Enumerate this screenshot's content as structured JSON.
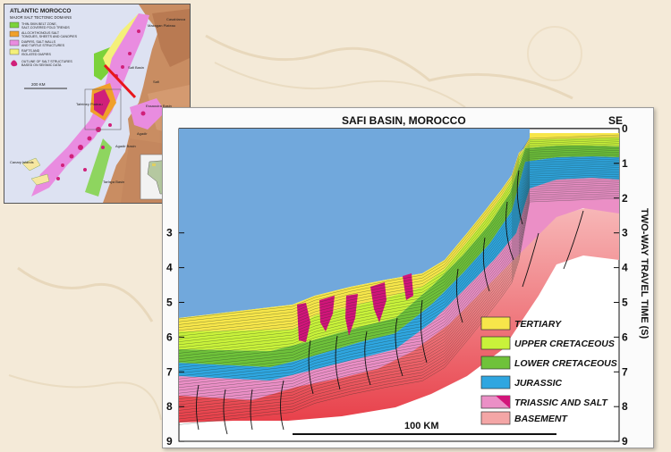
{
  "map": {
    "title": "ATLANTIC MOROCCO",
    "subtitle": "MAJOR SALT TECTONIC DOMAINS",
    "legend": [
      {
        "text": "THIN-SKIN BELT ZONE, SALT-COVERED FOLD TRENDS",
        "line1": "THIN-SKIN BELT ZONE,",
        "line2": "SALT-COVERED FOLD TRENDS",
        "color": "#7bd23a"
      },
      {
        "text": "ALLOCHTHONOUS SALT TONGUES, SHEETS AND CANOPIES",
        "line1": "ALLOCHTHONOUS SALT",
        "line2": "TONGUES, SHEETS AND CANOPIES",
        "color": "#f0a02a"
      },
      {
        "text": "DIAPIRS, SALT WALLS AND TURTLE STRUCTURES",
        "line1": "DIAPIRS, SALT WALLS",
        "line2": "AND TURTLE STRUCTURES",
        "color": "#e98ce0"
      },
      {
        "text": "RAFTS AND ISOLATED DIAPIRS",
        "line1": "RAFTS AND",
        "line2": "ISOLATED DIAPIRS",
        "color": "#f4f07a"
      },
      {
        "text": "OUTLINE OF SALT STRUCTURES BASED ON SEISMIC DATA",
        "line1": "OUTLINE OF SALT STRUCTURES",
        "line2": "BASED ON SEISMIC DATA",
        "color": "#d0207a"
      }
    ],
    "scale": "200 KM",
    "places": {
      "mazagan": "Mazagan Plateau",
      "casablanca": "Casablanca",
      "safi": "Safi Basin",
      "safi_town": "Safi",
      "tafelney": "Tafelney Plateau",
      "essaouira": "Essaouira Basin",
      "agadir_town": "Agadir",
      "agadir_basin": "Agadir Basin",
      "canary": "Canary Islands",
      "tarfaya": "Tarfaya Basin"
    }
  },
  "section": {
    "title": "SAFI BASIN, MOROCCO",
    "direction": "SE",
    "axis_label": "TWO-WAY TRAVEL TIME (S)",
    "left_ticks": [
      "3",
      "4",
      "5",
      "6",
      "7",
      "8",
      "9"
    ],
    "right_ticks": [
      "0",
      "1",
      "2",
      "3",
      "4",
      "5",
      "6",
      "7",
      "8",
      "9"
    ],
    "scale": "100 KM",
    "legend": [
      {
        "label": "TERTIARY",
        "color": "#f7e64a"
      },
      {
        "label": "UPPER CRETACEOUS",
        "color": "#c9f23a"
      },
      {
        "label": "LOWER CRETACEOUS",
        "color": "#6fc23a"
      },
      {
        "label": "JURASSIC",
        "color": "#2fa6e0"
      },
      {
        "label": "TRIASSIC AND SALT",
        "color": "#eb8fc6"
      },
      {
        "label": "BASEMENT",
        "color": "#f4a6a6"
      }
    ],
    "colors": {
      "water": "#71a8dc",
      "salt": "#d2157a"
    }
  }
}
